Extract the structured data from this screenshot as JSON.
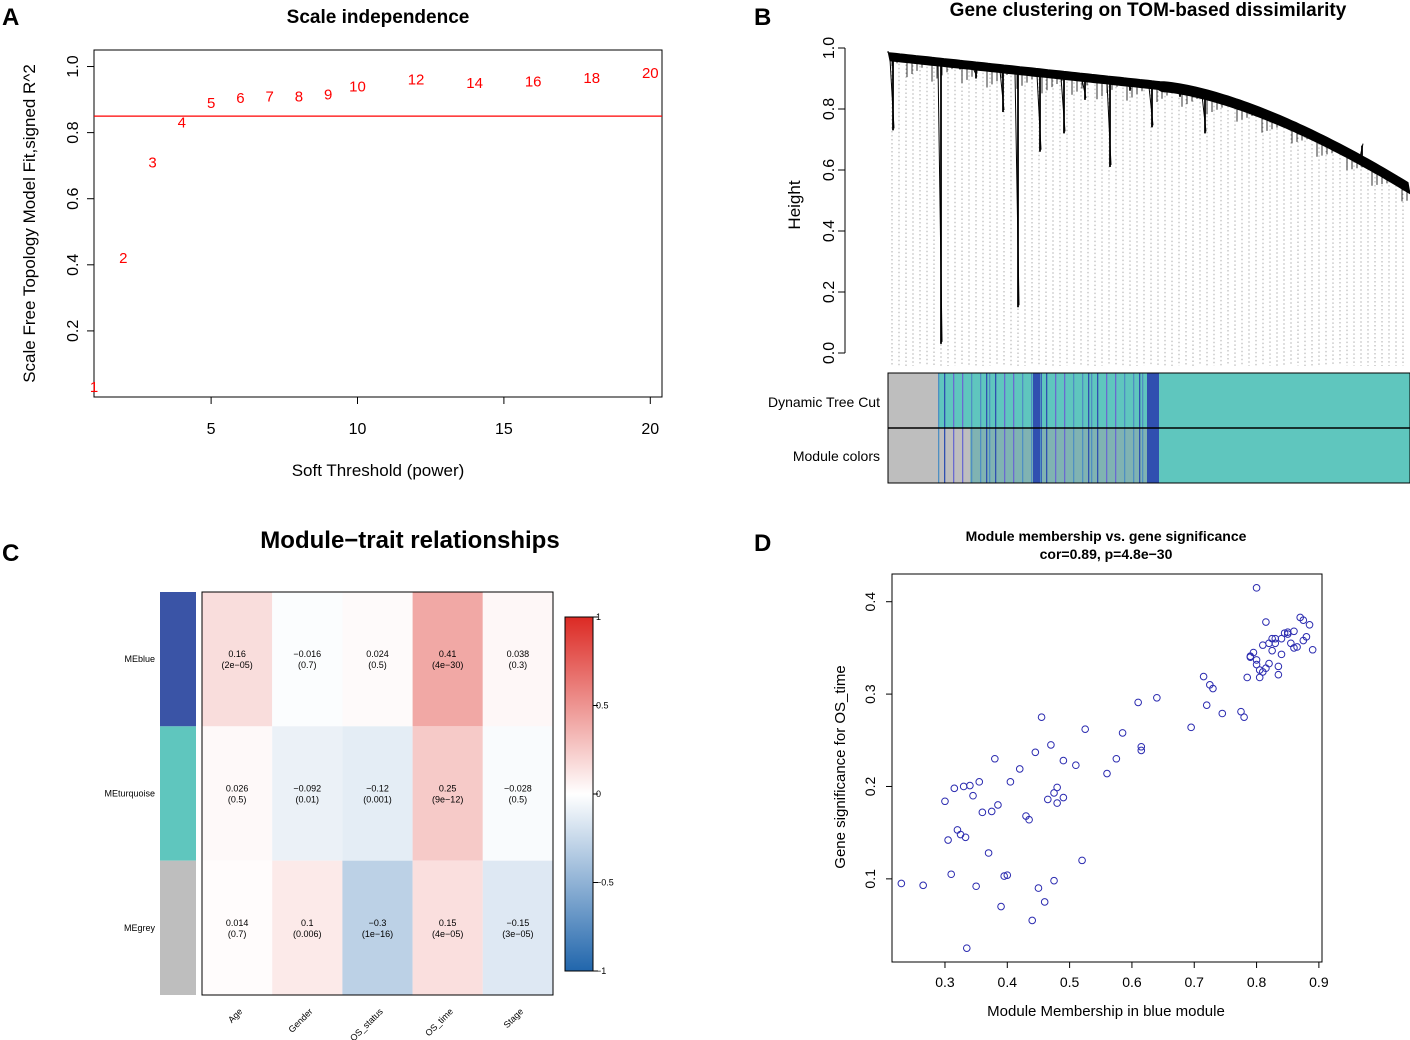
{
  "panels": {
    "A": {
      "letter": "A"
    },
    "B": {
      "letter": "B"
    },
    "C": {
      "letter": "C"
    },
    "D": {
      "letter": "D"
    }
  },
  "chart_data": [
    {
      "type": "scatter",
      "panel": "A",
      "title": "Scale independence",
      "xlabel": "Soft Threshold (power)",
      "ylabel": "Scale Free Topology Model Fit,signed R^2",
      "xlim": [
        1,
        20.4
      ],
      "ylim": [
        0,
        1.05
      ],
      "xticks": [
        5,
        10,
        15,
        20
      ],
      "yticks": [
        0.2,
        0.4,
        0.6,
        0.8,
        1.0
      ],
      "ytick_labels": [
        "0.2",
        "0.4",
        "0.6",
        "0.8",
        "1.0"
      ],
      "threshold_line": 0.85,
      "line_color": "#ff0000",
      "point_color": "#ff0000",
      "points": [
        {
          "x": 1,
          "y": 0.03,
          "label": "1"
        },
        {
          "x": 2,
          "y": 0.42,
          "label": "2"
        },
        {
          "x": 3,
          "y": 0.71,
          "label": "3"
        },
        {
          "x": 4,
          "y": 0.83,
          "label": "4"
        },
        {
          "x": 5,
          "y": 0.89,
          "label": "5"
        },
        {
          "x": 6,
          "y": 0.905,
          "label": "6"
        },
        {
          "x": 7,
          "y": 0.91,
          "label": "7"
        },
        {
          "x": 8,
          "y": 0.91,
          "label": "8"
        },
        {
          "x": 9,
          "y": 0.915,
          "label": "9"
        },
        {
          "x": 10,
          "y": 0.94,
          "label": "10"
        },
        {
          "x": 12,
          "y": 0.96,
          "label": "12"
        },
        {
          "x": 14,
          "y": 0.95,
          "label": "14"
        },
        {
          "x": 16,
          "y": 0.955,
          "label": "16"
        },
        {
          "x": 18,
          "y": 0.965,
          "label": "18"
        },
        {
          "x": 20,
          "y": 0.98,
          "label": "20"
        }
      ]
    },
    {
      "type": "dendrogram",
      "panel": "B",
      "title": "Gene clustering on TOM-based dissimilarity",
      "ylabel": "Height",
      "ylim": [
        0,
        1.0
      ],
      "yticks": [
        0.0,
        0.2,
        0.4,
        0.6,
        0.8,
        1.0
      ],
      "ytick_labels": [
        "0.0",
        "0.2",
        "0.4",
        "0.6",
        "0.8",
        "1.0"
      ],
      "color_rows": [
        "Dynamic Tree Cut",
        "Module colors"
      ],
      "module_colors": {
        "grey": "#bebebe",
        "turquoise": "#5fc6be",
        "blue": "#3050b0"
      }
    },
    {
      "type": "heatmap",
      "panel": "C",
      "title": "Module−trait relationships",
      "rows": [
        "MEblue",
        "MEturquoise",
        "MEgrey"
      ],
      "row_colors": [
        "#3a54a6",
        "#5fc6be",
        "#bebebe"
      ],
      "columns": [
        "Age",
        "Gender",
        "OS_status",
        "OS_time",
        "Stage"
      ],
      "values": [
        [
          0.16,
          -0.016,
          0.024,
          0.41,
          0.038
        ],
        [
          0.026,
          -0.092,
          -0.12,
          0.25,
          -0.028
        ],
        [
          0.014,
          0.1,
          -0.3,
          0.15,
          -0.15
        ]
      ],
      "cell_labels": [
        [
          "0.16",
          "−0.016",
          "0.024",
          "0.41",
          "0.038"
        ],
        [
          "0.026",
          "−0.092",
          "−0.12",
          "0.25",
          "−0.028"
        ],
        [
          "0.014",
          "0.1",
          "−0.3",
          "0.15",
          "−0.15"
        ]
      ],
      "pvalues": [
        [
          "(2e−05)",
          "(0.7)",
          "(0.5)",
          "(4e−30)",
          "(0.3)"
        ],
        [
          "(0.5)",
          "(0.01)",
          "(0.001)",
          "(9e−12)",
          "(0.5)"
        ],
        [
          "(0.7)",
          "(0.006)",
          "(1e−16)",
          "(4e−05)",
          "(3e−05)"
        ]
      ],
      "colorbar_ticks": [
        1,
        0.5,
        0,
        -0.5,
        -1
      ],
      "colorbar_labels": [
        "1",
        "0.5",
        "0",
        "−0.5",
        "−1"
      ],
      "colormap": {
        "neg": "#2166ac",
        "mid": "#ffffff",
        "pos": "#dc2a24"
      }
    },
    {
      "type": "scatter",
      "panel": "D",
      "title": "Module membership vs. gene significance",
      "subtitle": "cor=0.89, p=4.8e−30",
      "xlabel": "Module Membership in blue module",
      "ylabel": "Gene significance for OS_time",
      "xlim": [
        0.215,
        0.905
      ],
      "ylim": [
        0.01,
        0.43
      ],
      "xticks": [
        0.3,
        0.4,
        0.5,
        0.6,
        0.7,
        0.8,
        0.9
      ],
      "xtick_labels": [
        "0.3",
        "0.4",
        "0.5",
        "0.6",
        "0.7",
        "0.8",
        "0.9"
      ],
      "yticks": [
        0.1,
        0.2,
        0.3,
        0.4
      ],
      "ytick_labels": [
        "0.1",
        "0.2",
        "0.3",
        "0.4"
      ],
      "point_color": "#2b2bb0",
      "x": [
        0.23,
        0.265,
        0.3,
        0.305,
        0.31,
        0.315,
        0.32,
        0.325,
        0.33,
        0.333,
        0.335,
        0.34,
        0.345,
        0.35,
        0.355,
        0.36,
        0.37,
        0.375,
        0.38,
        0.385,
        0.39,
        0.395,
        0.4,
        0.405,
        0.42,
        0.43,
        0.435,
        0.44,
        0.445,
        0.45,
        0.455,
        0.46,
        0.465,
        0.47,
        0.475,
        0.475,
        0.48,
        0.48,
        0.49,
        0.49,
        0.51,
        0.52,
        0.525,
        0.56,
        0.575,
        0.585,
        0.61,
        0.615,
        0.615,
        0.64,
        0.695,
        0.715,
        0.72,
        0.725,
        0.73,
        0.745,
        0.775,
        0.78,
        0.785,
        0.79,
        0.795,
        0.8,
        0.8,
        0.805,
        0.805,
        0.81,
        0.815,
        0.815,
        0.82,
        0.825,
        0.83,
        0.83,
        0.835,
        0.84,
        0.845,
        0.85,
        0.855,
        0.86,
        0.865,
        0.87,
        0.875,
        0.88,
        0.885,
        0.89,
        0.8,
        0.79,
        0.81,
        0.82,
        0.84,
        0.86,
        0.875,
        0.825,
        0.835,
        0.85
      ],
      "y": [
        0.095,
        0.093,
        0.184,
        0.142,
        0.105,
        0.198,
        0.153,
        0.148,
        0.2,
        0.145,
        0.025,
        0.201,
        0.19,
        0.092,
        0.205,
        0.172,
        0.128,
        0.173,
        0.23,
        0.18,
        0.07,
        0.103,
        0.104,
        0.205,
        0.219,
        0.168,
        0.164,
        0.055,
        0.237,
        0.09,
        0.275,
        0.075,
        0.186,
        0.245,
        0.193,
        0.098,
        0.199,
        0.182,
        0.228,
        0.188,
        0.223,
        0.12,
        0.262,
        0.214,
        0.23,
        0.258,
        0.291,
        0.243,
        0.239,
        0.296,
        0.264,
        0.319,
        0.288,
        0.31,
        0.306,
        0.279,
        0.281,
        0.275,
        0.318,
        0.341,
        0.345,
        0.332,
        0.415,
        0.326,
        0.318,
        0.353,
        0.378,
        0.328,
        0.333,
        0.347,
        0.36,
        0.355,
        0.321,
        0.343,
        0.366,
        0.367,
        0.355,
        0.368,
        0.351,
        0.383,
        0.358,
        0.362,
        0.375,
        0.348,
        0.337,
        0.34,
        0.324,
        0.355,
        0.36,
        0.35,
        0.38,
        0.36,
        0.33,
        0.365
      ]
    }
  ]
}
